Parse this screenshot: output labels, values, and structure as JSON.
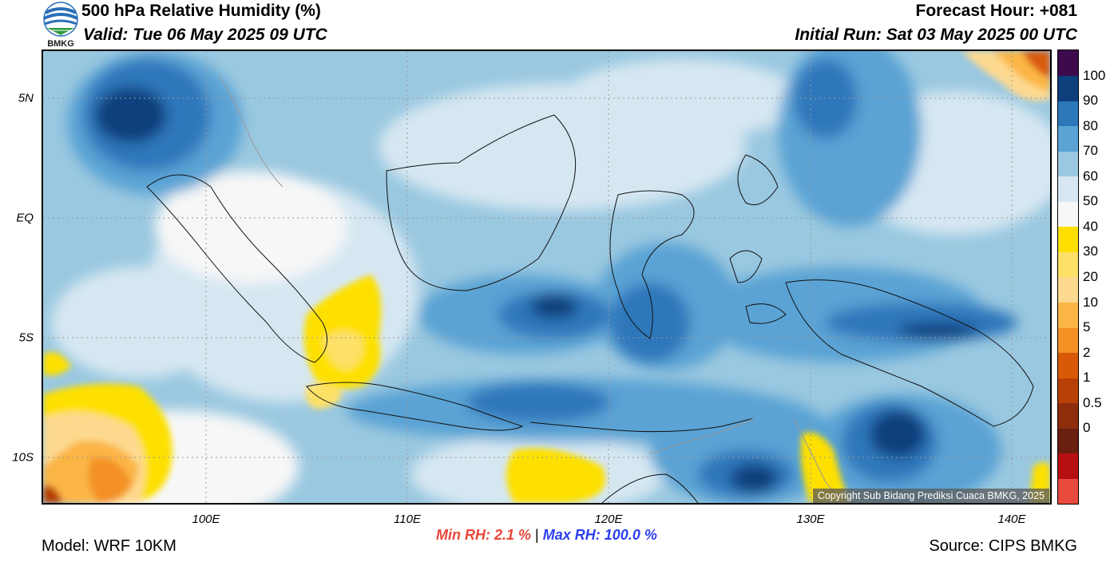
{
  "header": {
    "title": "500 hPa Relative Humidity (%)",
    "valid": "Valid: Tue 06 May 2025 09 UTC",
    "forecast_hour": "Forecast Hour: +081",
    "initial_run": "Initial Run: Sat 03 May 2025 00 UTC"
  },
  "logo": {
    "text": "BMKG"
  },
  "map": {
    "lat_labels": [
      "5N",
      "EQ",
      "5S",
      "10S"
    ],
    "lon_labels": [
      "100E",
      "110E",
      "120E",
      "130E",
      "140E"
    ],
    "lat_range": [
      -12,
      7
    ],
    "lon_range": [
      92,
      142
    ],
    "copyright": "Copyright Sub Bidang Prediksi Cuaca BMKG, 2025"
  },
  "colorbar": {
    "labels": [
      "100",
      "90",
      "80",
      "70",
      "60",
      "50",
      "40",
      "30",
      "20",
      "10",
      "5",
      "2",
      "1",
      "0.5",
      "0"
    ],
    "colors": [
      "#e84a3e",
      "#b80f13",
      "#6a1f10",
      "#8e2d0c",
      "#b84006",
      "#d85a09",
      "#f39125",
      "#fbb545",
      "#fdd98f",
      "#fde066",
      "#fde000",
      "#f7f7f7",
      "#d6e7f2",
      "#9ac8e0",
      "#5aa3d4",
      "#2d77bb",
      "#0c3f7c",
      "#3e0a4e"
    ]
  },
  "stats": {
    "min_label": "Min RH:",
    "min_value": "2.1 %",
    "separator": "|",
    "max_label": "Max RH:",
    "max_value": "100.0 %"
  },
  "footer": {
    "model": "Model: WRF 10KM",
    "source": "Source: CIPS BMKG"
  }
}
